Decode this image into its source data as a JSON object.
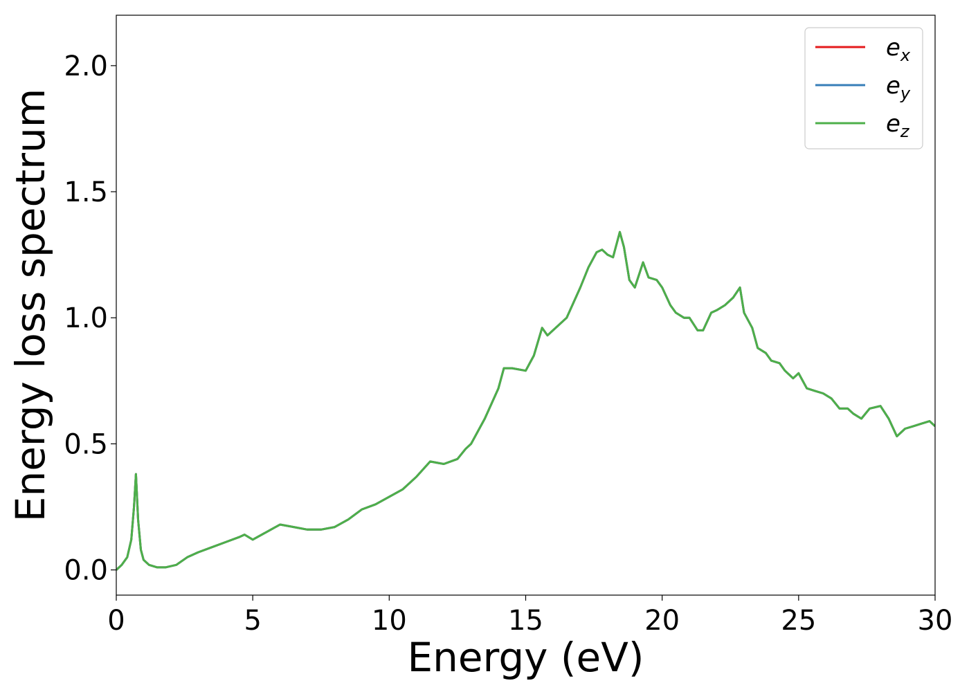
{
  "chart_data": {
    "type": "line",
    "title": "",
    "xlabel": "Energy (eV)",
    "ylabel": "Energy loss spectrum",
    "xlim": [
      0,
      30
    ],
    "ylim": [
      -0.1,
      2.2
    ],
    "x_ticks": [
      0,
      5,
      10,
      15,
      20,
      25,
      30
    ],
    "x_tick_labels": [
      "0",
      "5",
      "10",
      "15",
      "20",
      "25",
      "30"
    ],
    "y_ticks": [
      0.0,
      0.5,
      1.0,
      1.5,
      2.0
    ],
    "y_tick_labels": [
      "0.0",
      "0.5",
      "1.0",
      "1.5",
      "2.0"
    ],
    "grid": false,
    "legend_position": "top-right",
    "series": [
      {
        "name": "e_x",
        "label_base": "e",
        "label_sub": "x",
        "color": "#e41a1c"
      },
      {
        "name": "e_y",
        "label_base": "e",
        "label_sub": "y",
        "color": "#377eb8"
      },
      {
        "name": "e_z",
        "label_base": "e",
        "label_sub": "z",
        "color": "#4daf4a"
      }
    ],
    "x": [
      0,
      0.2,
      0.4,
      0.55,
      0.65,
      0.72,
      0.8,
      0.9,
      1.0,
      1.2,
      1.5,
      1.8,
      2.2,
      2.6,
      3.0,
      3.5,
      4.0,
      4.5,
      4.7,
      5.0,
      5.5,
      6.0,
      6.5,
      7.0,
      7.5,
      8.0,
      8.5,
      9.0,
      9.5,
      10.0,
      10.5,
      11.0,
      11.5,
      12.0,
      12.5,
      12.8,
      13.0,
      13.5,
      14.0,
      14.2,
      14.5,
      15.0,
      15.3,
      15.6,
      15.8,
      16.0,
      16.5,
      17.0,
      17.3,
      17.6,
      17.8,
      18.0,
      18.2,
      18.45,
      18.6,
      18.8,
      19.0,
      19.3,
      19.5,
      19.8,
      20.0,
      20.3,
      20.5,
      20.8,
      21.0,
      21.3,
      21.5,
      21.8,
      22.0,
      22.3,
      22.6,
      22.85,
      23.0,
      23.3,
      23.5,
      23.8,
      24.0,
      24.3,
      24.5,
      24.8,
      25.0,
      25.3,
      25.6,
      25.9,
      26.2,
      26.5,
      26.8,
      27.0,
      27.3,
      27.6,
      28.0,
      28.3,
      28.6,
      28.9,
      29.2,
      29.5,
      29.8,
      30.0
    ],
    "y": [
      0.0,
      0.02,
      0.05,
      0.12,
      0.25,
      0.38,
      0.2,
      0.08,
      0.04,
      0.02,
      0.01,
      0.01,
      0.02,
      0.05,
      0.07,
      0.09,
      0.11,
      0.13,
      0.14,
      0.12,
      0.15,
      0.18,
      0.17,
      0.16,
      0.16,
      0.17,
      0.2,
      0.24,
      0.26,
      0.29,
      0.32,
      0.37,
      0.43,
      0.42,
      0.44,
      0.48,
      0.5,
      0.6,
      0.72,
      0.8,
      0.8,
      0.79,
      0.85,
      0.96,
      0.93,
      0.95,
      1.0,
      1.12,
      1.2,
      1.26,
      1.27,
      1.25,
      1.24,
      1.34,
      1.28,
      1.15,
      1.12,
      1.22,
      1.16,
      1.15,
      1.12,
      1.05,
      1.02,
      1.0,
      1.0,
      0.95,
      0.95,
      1.02,
      1.03,
      1.05,
      1.08,
      1.12,
      1.02,
      0.96,
      0.88,
      0.86,
      0.83,
      0.82,
      0.79,
      0.76,
      0.78,
      0.72,
      0.71,
      0.7,
      0.68,
      0.64,
      0.64,
      0.62,
      0.6,
      0.64,
      0.65,
      0.6,
      0.53,
      0.56,
      0.57,
      0.58,
      0.59,
      0.57
    ]
  }
}
